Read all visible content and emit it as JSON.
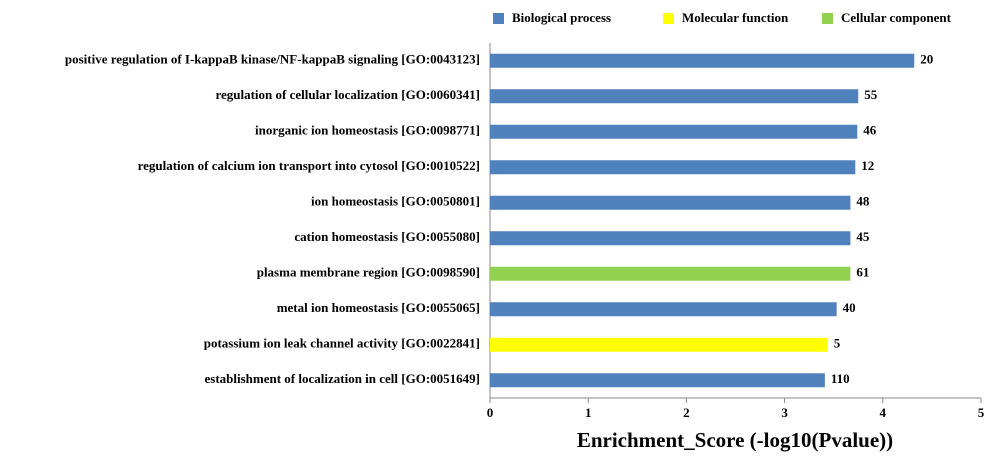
{
  "chart_data": {
    "type": "barh",
    "xlabel": "Enrichment_Score (-log10(Pvalue))",
    "categories": [
      "positive regulation of I-kappaB kinase/NF-kappaB signaling [GO:0043123]",
      "regulation of cellular localization [GO:0060341]",
      "inorganic ion homeostasis [GO:0098771]",
      "regulation of calcium ion transport into cytosol [GO:0010522]",
      "ion homeostasis [GO:0050801]",
      "cation homeostasis [GO:0055080]",
      "plasma membrane region [GO:0098590]",
      "metal ion homeostasis [GO:0055065]",
      "potassium ion leak channel activity [GO:0022841]",
      "establishment of localization in cell [GO:0051649]"
    ],
    "values": [
      4.32,
      3.75,
      3.74,
      3.72,
      3.67,
      3.67,
      3.67,
      3.53,
      3.44,
      3.41
    ],
    "counts": [
      20,
      55,
      46,
      12,
      48,
      45,
      61,
      40,
      5,
      110
    ],
    "colors": [
      "#4f81bd",
      "#4f81bd",
      "#4f81bd",
      "#4f81bd",
      "#4f81bd",
      "#4f81bd",
      "#92d050",
      "#4f81bd",
      "#ffff00",
      "#4f81bd"
    ],
    "legend": [
      {
        "name": "Biological process",
        "color": "#4f81bd"
      },
      {
        "name": "Molecular function",
        "color": "#ffff00"
      },
      {
        "name": "Cellular component",
        "color": "#92d050"
      }
    ],
    "xlim": [
      0,
      5
    ],
    "xticks": [
      0,
      1,
      2,
      3,
      4,
      5
    ]
  }
}
